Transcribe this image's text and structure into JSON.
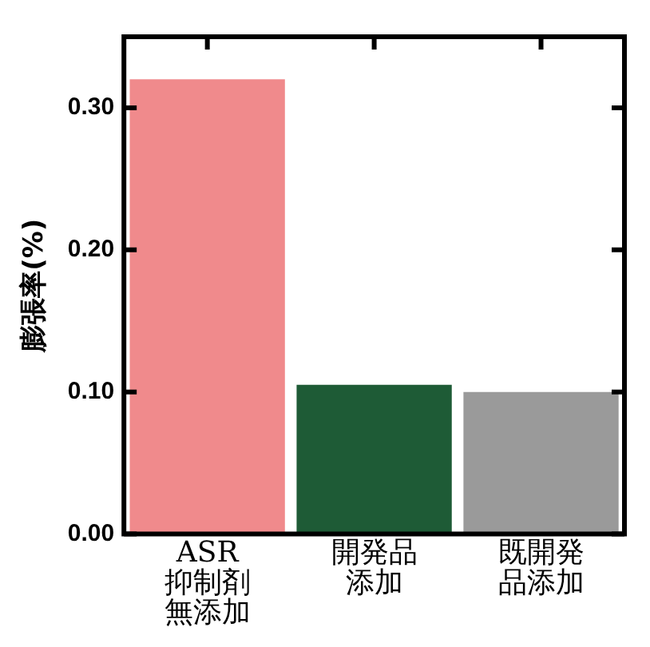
{
  "chart_data": {
    "type": "bar",
    "categories": [
      "ASR抑制剤無添加",
      "開発品添加",
      "既開発品添加"
    ],
    "values": [
      0.32,
      0.105,
      0.1
    ],
    "colors": [
      "#f08a8c",
      "#1e5b36",
      "#9a9a9a"
    ],
    "ylabel": "膨張率(%)",
    "ylim": [
      0,
      0.35
    ],
    "yticks": [
      {
        "value": 0,
        "label": "0.00"
      },
      {
        "value": 0.1,
        "label": "0.10"
      },
      {
        "value": 0.2,
        "label": "0.20"
      },
      {
        "value": 0.3,
        "label": "0.30"
      }
    ],
    "grid": false,
    "legend": false
  }
}
